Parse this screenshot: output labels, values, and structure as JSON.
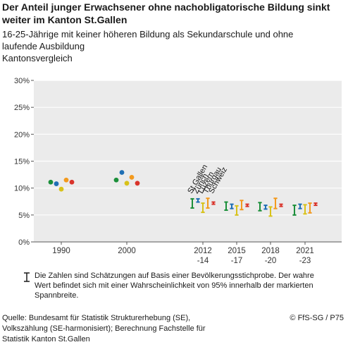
{
  "header": {
    "title": "Der Anteil junger Erwachsener ohne nachobligatorische Bildung sinkt weiter im Kanton St.Gallen",
    "subtitle_line1": "16-25-Jährige mit keiner höheren Bildung als Sekundarschule und ohne",
    "subtitle_line2": "laufende Ausbildung",
    "subtitle_line3": "Kantonsvergleich"
  },
  "footer": {
    "note": "Die Zahlen sind Schätzungen auf Basis einer Bevölkerungsstichprobe. Der wahre Wert befindet sich mit einer Wahrscheinlichkeit von 95% innerhalb der markierten Spannbreite.",
    "source": "Quelle: Bundesamt für Statistik Strukturerhebung (SE), Volkszählung (SE-harmonisiert); Berechnung Fachstelle für Statistik Kanton St.Gallen",
    "copyright": "© FfS-SG / P75"
  },
  "chart_data": {
    "type": "scatter",
    "categories": [
      "1990",
      "2000",
      "2012\n-14",
      "2015\n-17",
      "2018\n-20",
      "2021\n-23"
    ],
    "ylim": [
      0,
      30
    ],
    "yticks": [
      0,
      5,
      10,
      15,
      20,
      25,
      30
    ],
    "ytick_labels": [
      "0%",
      "5%",
      "10%",
      "15%",
      "20%",
      "25%",
      "30%"
    ],
    "grid": "horizontal",
    "series_labels": [
      "St.Gallen",
      "Zürich",
      "Luzern",
      "Thurgau",
      "Schweiz"
    ],
    "colors": {
      "St.Gallen": "#1b8f3a",
      "Zürich": "#1f6fb5",
      "Luzern": "#d8c21a",
      "Thurgau": "#f39a1e",
      "Schweiz": "#d9342b"
    },
    "series": [
      {
        "name": "St.Gallen",
        "values": [
          11.1,
          11.5,
          7.1,
          6.6,
          6.5,
          5.9
        ],
        "ci_low": [
          null,
          null,
          6.3,
          5.9,
          5.8,
          5.0
        ],
        "ci_high": [
          null,
          null,
          8.0,
          7.4,
          7.3,
          6.8
        ]
      },
      {
        "name": "Zürich",
        "values": [
          10.8,
          12.9,
          7.7,
          6.6,
          6.4,
          6.6
        ],
        "ci_low": [
          null,
          null,
          7.4,
          6.2,
          6.1,
          6.2
        ],
        "ci_high": [
          null,
          null,
          8.0,
          7.0,
          6.8,
          7.0
        ]
      },
      {
        "name": "Luzern",
        "values": [
          9.8,
          10.9,
          6.3,
          5.8,
          5.6,
          6.0
        ],
        "ci_low": [
          null,
          null,
          5.5,
          5.0,
          4.8,
          5.2
        ],
        "ci_high": [
          null,
          null,
          7.2,
          6.7,
          6.5,
          6.9
        ]
      },
      {
        "name": "Thurgau",
        "values": [
          11.5,
          12.0,
          7.2,
          6.8,
          7.2,
          6.3
        ],
        "ci_low": [
          null,
          null,
          6.3,
          6.0,
          6.2,
          5.4
        ],
        "ci_high": [
          null,
          null,
          8.1,
          7.7,
          8.1,
          7.2
        ]
      },
      {
        "name": "Schweiz",
        "values": [
          11.1,
          10.9,
          7.2,
          6.8,
          6.8,
          7.0
        ],
        "ci_low": [
          null,
          null,
          7.0,
          6.6,
          6.6,
          6.8
        ],
        "ci_high": [
          null,
          null,
          7.4,
          7.0,
          7.0,
          7.2
        ]
      }
    ]
  }
}
